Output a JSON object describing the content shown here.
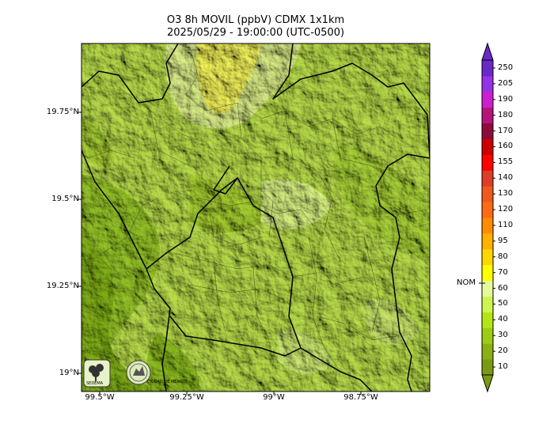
{
  "title": {
    "line1": "O3 8h MOVIL (ppbV) CDMX 1x1km",
    "line2": "2025/05/29 - 19:00:00 (UTC-0500)"
  },
  "map": {
    "lat_ticks": [
      "19.75°N",
      "19.5°N",
      "19.25°N",
      "19°N"
    ],
    "lon_ticks": [
      "99.5°W",
      "99.25°W",
      "99°W",
      "98.75°W"
    ],
    "logos": [
      {
        "name": "SEDEMA",
        "icon": "tree-icon"
      },
      {
        "name": "CIUDAD DE MÉXICO",
        "icon": "city-seal-icon"
      }
    ]
  },
  "colorbar": {
    "marker_label": "NOM",
    "marker_value": 70,
    "levels": [
      {
        "label": "10",
        "color": "#7a9a14"
      },
      {
        "label": "20",
        "color": "#8bb014"
      },
      {
        "label": "30",
        "color": "#9ccc14"
      },
      {
        "label": "40",
        "color": "#b4e614"
      },
      {
        "label": "50",
        "color": "#ccf550"
      },
      {
        "label": "60",
        "color": "#e6fa98"
      },
      {
        "label": "70",
        "color": "#ffff00"
      },
      {
        "label": "80",
        "color": "#ffd700"
      },
      {
        "label": "95",
        "color": "#ffb000"
      },
      {
        "label": "110",
        "color": "#ff8c00"
      },
      {
        "label": "120",
        "color": "#ff6a14"
      },
      {
        "label": "130",
        "color": "#ee5a1e"
      },
      {
        "label": "140",
        "color": "#dd3c28"
      },
      {
        "label": "155",
        "color": "#ff0000"
      },
      {
        "label": "160",
        "color": "#cc0000"
      },
      {
        "label": "170",
        "color": "#8c0a3c"
      },
      {
        "label": "180",
        "color": "#b4147a"
      },
      {
        "label": "190",
        "color": "#cc1ecc"
      },
      {
        "label": "205",
        "color": "#9632e6"
      },
      {
        "label": "250",
        "color": "#6a28c8"
      }
    ]
  }
}
